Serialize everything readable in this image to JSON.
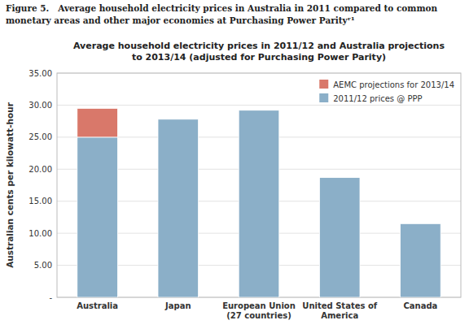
{
  "chart_data": {
    "type": "bar",
    "stacked": true,
    "caption": "Figure 5.   Average household electricity prices in Australia in 2011 compared to common\nmonetary areas and other major economies at Purchasing Power Parityʳ¹",
    "title": "Average household electricity prices in 2011/12 and Australia projections\nto 2013/14 (adjusted for Purchasing Power Parity)",
    "y_label": "Australian cents per kilowatt-hour",
    "categories": [
      "Australia",
      "Japan",
      "European Union\n(27 countries)",
      "United States of\nAmerica",
      "Canada"
    ],
    "series": [
      {
        "name": "2011/12 prices @ PPP",
        "color": "#8BAFC8",
        "values": [
          25.0,
          27.8,
          29.2,
          18.7,
          11.5
        ]
      },
      {
        "name": "AEMC projections for 2013/14",
        "color": "#D9786A",
        "values": [
          4.5,
          0,
          0,
          0,
          0
        ]
      }
    ],
    "ylim": [
      0,
      35
    ],
    "yticks": [
      {
        "value": 0,
        "label": "-"
      },
      {
        "value": 5.0,
        "label": "5.00"
      },
      {
        "value": 10.0,
        "label": "10.00"
      },
      {
        "value": 15.0,
        "label": "15.00"
      },
      {
        "value": 20.0,
        "label": "20.00"
      },
      {
        "value": 25.0,
        "label": "25.00"
      },
      {
        "value": 30.0,
        "label": "30.00"
      },
      {
        "value": 35.0,
        "label": "35.00"
      }
    ],
    "grid": true,
    "legend": "upper right"
  }
}
